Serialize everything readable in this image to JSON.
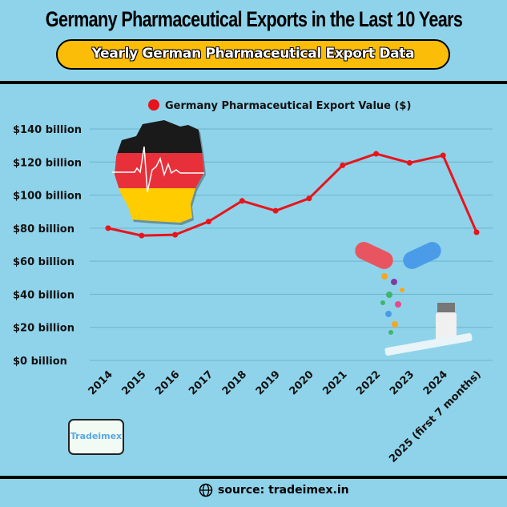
{
  "header": {
    "title": "Germany Pharmaceutical Exports in the Last 10 Years",
    "subtitle": "Yearly German Pharmaceutical Export Data"
  },
  "chart_data": {
    "type": "line",
    "categories": [
      "2014",
      "2015",
      "2016",
      "2017",
      "2018",
      "2019",
      "2020",
      "2021",
      "2022",
      "2023",
      "2024",
      "2025 (first 7 months)"
    ],
    "series": [
      {
        "name": "Germany Pharmaceutical Export Value ($)",
        "values": [
          80,
          75.5,
          76,
          84,
          96.5,
          90.5,
          98,
          118,
          125,
          119.5,
          124,
          77.5
        ],
        "color": "#e8141b"
      }
    ],
    "ylim": [
      0,
      140
    ],
    "yticks": [
      0,
      20,
      40,
      60,
      80,
      100,
      120,
      140
    ],
    "ytick_labels": [
      "$0 billion",
      "$20 billion",
      "$40 billion",
      "$60 billion",
      "$80 billion",
      "$100 billion",
      "$120 billion",
      "$140 billion"
    ],
    "grid": true,
    "legend": "top"
  },
  "logo": {
    "text": "Tradeimex"
  },
  "footer": {
    "source": "source: tradeimex.in",
    "icon": "globe-icon"
  },
  "colors": {
    "background": "#8fd3ea",
    "accent": "#fbbd08",
    "line": "#e8141b"
  }
}
